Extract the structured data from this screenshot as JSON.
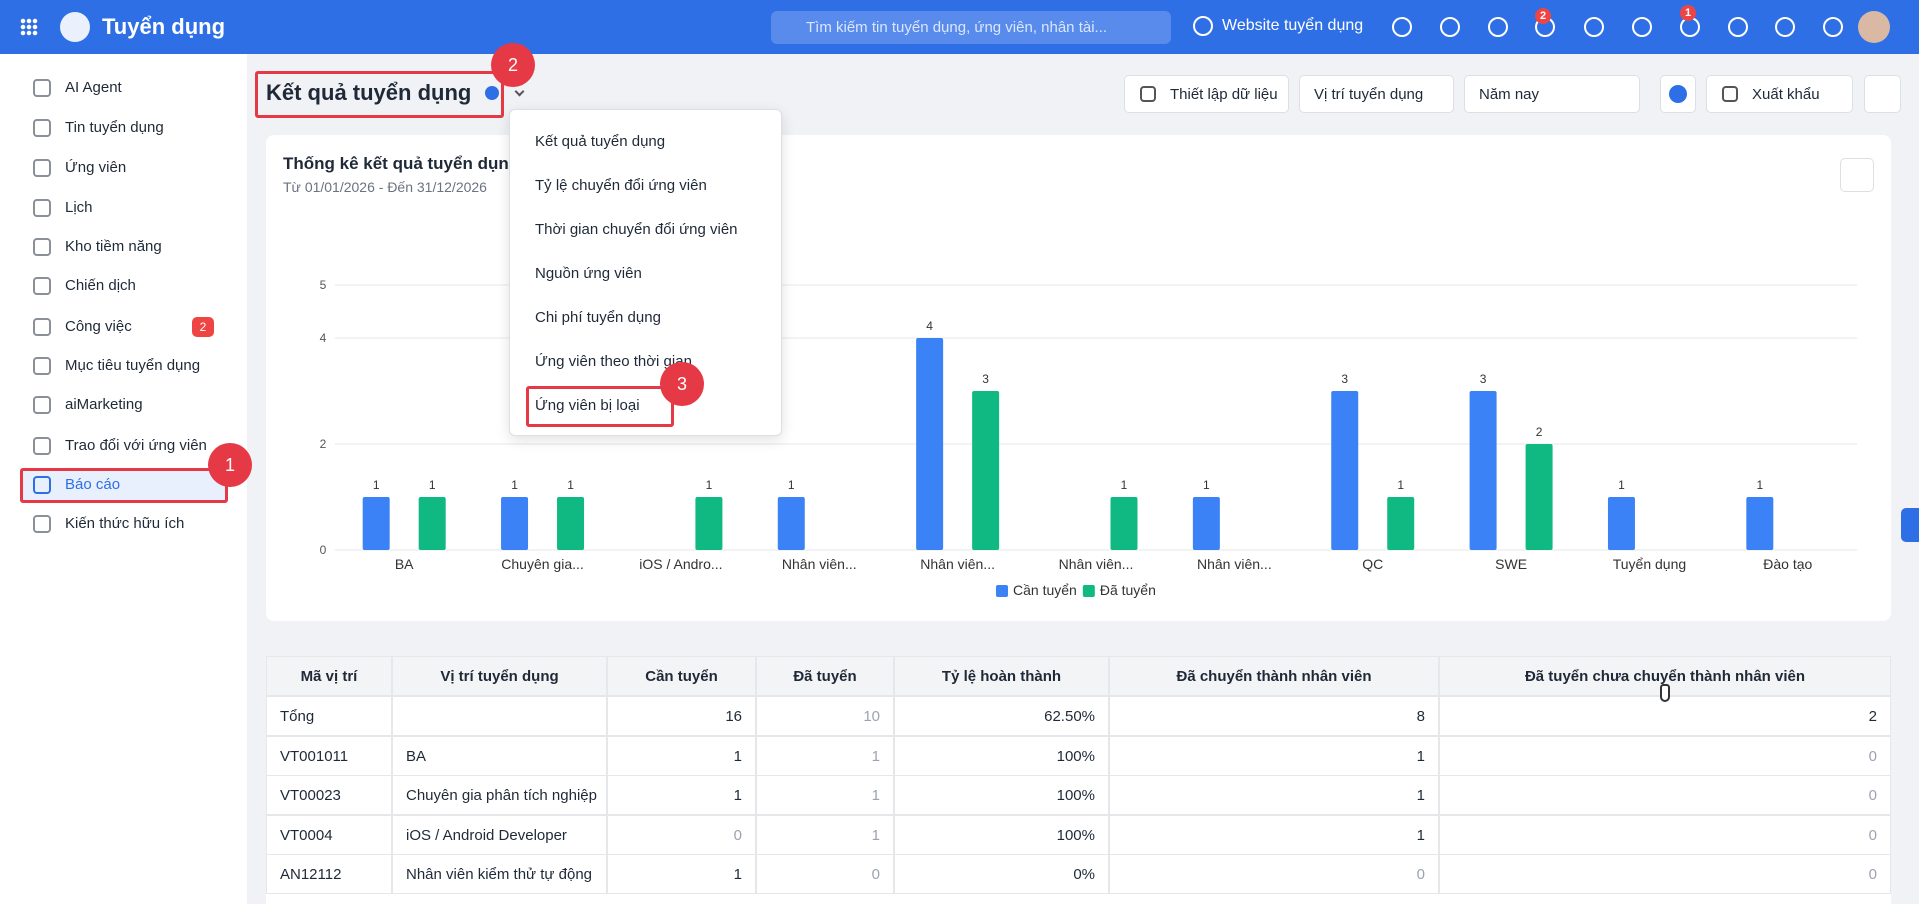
{
  "topbar": {
    "app_title": "Tuyển dụng",
    "search_placeholder": "Tìm kiếm tin tuyển dụng, ứng viên, nhân tài...",
    "website_link": "Website tuyển dụng",
    "cart_badge": "2",
    "notification_badge": "1"
  },
  "sidebar": {
    "items": [
      {
        "label": "AI Agent"
      },
      {
        "label": "Tin tuyển dụng"
      },
      {
        "label": "Ứng viên"
      },
      {
        "label": "Lịch"
      },
      {
        "label": "Kho tiềm năng"
      },
      {
        "label": "Chiến dịch"
      },
      {
        "label": "Công việc",
        "badge": "2"
      },
      {
        "label": "Mục tiêu tuyển dụng"
      },
      {
        "label": "aiMarketing"
      },
      {
        "label": "Trao đổi với ứng viên"
      },
      {
        "label": "Báo cáo"
      },
      {
        "label": "Kiến thức hữu ích"
      }
    ]
  },
  "annotations": [
    "1",
    "2",
    "3"
  ],
  "page_header": {
    "title": "Kết quả tuyển dụng",
    "buttons": [
      "Thiết lập dữ liệu",
      "Vị trí tuyển dụng",
      "Năm nay",
      "Xuất khẩu"
    ]
  },
  "dropdown": {
    "items": [
      "Kết quả tuyển dụng",
      "Tỷ lệ chuyển đổi ứng viên",
      "Thời gian chuyển đổi ứng viên",
      "Nguồn ứng viên",
      "Chi phí tuyển dụng",
      "Ứng viên theo thời gian",
      "Ứng viên bị loại"
    ]
  },
  "chart_data": {
    "type": "bar",
    "title": "Thống kê kết quả tuyển dụng",
    "subtitle": "Từ 01/01/2026 - Đến 31/12/2026",
    "categories": [
      "BA",
      "Chuyên gia...",
      "iOS / Andro...",
      "Nhân viên...",
      "Nhân viên...",
      "Nhân viên...",
      "Nhân viên...",
      "QC",
      "SWE",
      "Tuyển dụng",
      "Đào tạo"
    ],
    "series": [
      {
        "name": "Cần tuyển",
        "color": "#3b82f6",
        "values": [
          1,
          1,
          0,
          1,
          4,
          0,
          1,
          3,
          3,
          1,
          1
        ]
      },
      {
        "name": "Đã tuyển",
        "color": "#10b981",
        "values": [
          1,
          1,
          1,
          0,
          3,
          1,
          0,
          1,
          2,
          0,
          0
        ]
      }
    ],
    "ylim": [
      0,
      5
    ],
    "yticks": [
      0,
      2,
      4,
      5
    ],
    "grid": true,
    "legend": "bottom"
  },
  "table": {
    "headers": [
      "Mã vị trí",
      "Vị trí tuyển dụng",
      "Cần tuyển",
      "Đã tuyển",
      "Tỷ lệ hoàn thành",
      "Đã chuyển thành nhân viên",
      "Đã tuyển chưa chuyển thành nhân viên"
    ],
    "rows": [
      [
        "Tổng",
        null,
        "16",
        "10",
        "62.50%",
        "8",
        "2"
      ],
      [
        "VT001011",
        "BA",
        "1",
        "1",
        "100%",
        "1",
        "0"
      ],
      [
        "VT00023",
        "Chuyên gia phân tích nghiệp",
        "1",
        "1",
        "100%",
        "1",
        "0"
      ],
      [
        "VT0004",
        "iOS / Android Developer",
        "0",
        "1",
        "100%",
        "1",
        "0"
      ],
      [
        "AN12112",
        "Nhân viên kiểm thử tự động",
        "1",
        "0",
        "0%",
        "0",
        "0"
      ]
    ]
  }
}
